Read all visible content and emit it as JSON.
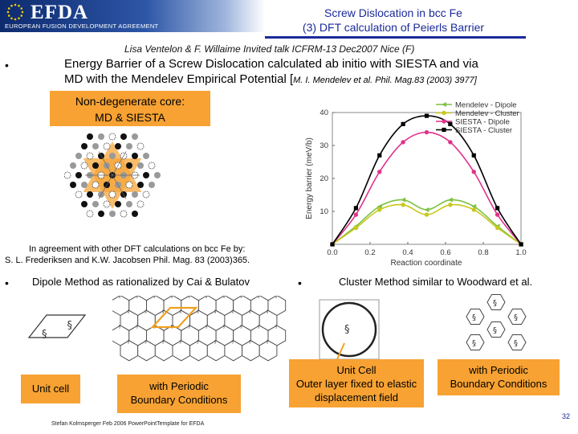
{
  "header": {
    "logo_text": "EFDA",
    "logo_subtitle": "EUROPEAN FUSION DEVELOPMENT AGREEMENT",
    "title_line1": "Screw Dislocation in bcc Fe",
    "title_line2": "(3) DFT calculation of Peierls Barrier",
    "colors": {
      "title": "#1a2a9a",
      "banner": "#0d2a6e"
    }
  },
  "authors": "Lisa Ventelon & F. Willaime Invited talk ICFRM-13  Dec2007 Nice (F)",
  "bullet_symbol": "•",
  "main_text": {
    "line1": "Energy Barrier of a Screw Dislocation calculated ab initio with SIESTA and  via",
    "line2_main": "MD with the Mendelev Empirical Potential [",
    "line2_ref": "M. I. Mendelev et al. Phil. Mag.83 (2003) 3977]"
  },
  "core_box": {
    "line1": "Non-degenerate core:",
    "line2": "MD & SIESTA",
    "color": "#f7a233"
  },
  "agreement": {
    "line1": "In agreement with other DFT calculations on bcc Fe by:",
    "line2": "S. L. Frederiksen and K.W. Jacobsen Phil. Mag. 83 (2003)365."
  },
  "chart_data": {
    "type": "line",
    "xlabel": "Reaction coordinate",
    "ylabel": "Energy barrier (meV/b)",
    "xlim": [
      0,
      1
    ],
    "ylim": [
      0,
      40
    ],
    "xticks": [
      "0.0",
      "0.2",
      "0.4",
      "0.6",
      "0.8",
      "1.0"
    ],
    "yticks": [
      "10",
      "20",
      "30",
      "40"
    ],
    "legend_position": "top-right",
    "series": [
      {
        "name": "Mendelev - Dipole",
        "color": "#7dc142",
        "marker": "triangle-left",
        "x": [
          0,
          0.125,
          0.25,
          0.375,
          0.5,
          0.625,
          0.75,
          0.875,
          1.0
        ],
        "y": [
          0,
          5.5,
          11.5,
          13.5,
          10.5,
          13.5,
          11.5,
          5.5,
          0
        ]
      },
      {
        "name": "Mendelev - Cluster",
        "color": "#c8c81e",
        "marker": "circle",
        "x": [
          0,
          0.125,
          0.25,
          0.375,
          0.5,
          0.625,
          0.75,
          0.875,
          1.0
        ],
        "y": [
          0,
          5,
          10.5,
          12,
          9,
          12,
          10.5,
          5,
          0
        ]
      },
      {
        "name": "SIESTA - Dipole",
        "color": "#e0338c",
        "marker": "circle",
        "x": [
          0,
          0.125,
          0.25,
          0.375,
          0.5,
          0.625,
          0.75,
          0.875,
          1.0
        ],
        "y": [
          0,
          9,
          22,
          31,
          34,
          31,
          22,
          9,
          0
        ]
      },
      {
        "name": "SIESTA - Cluster",
        "color": "#000000",
        "marker": "square",
        "x": [
          0,
          0.125,
          0.25,
          0.375,
          0.5,
          0.625,
          0.75,
          0.875,
          1.0
        ],
        "y": [
          0,
          11,
          27,
          36.5,
          39,
          36.5,
          27,
          11,
          0
        ]
      }
    ]
  },
  "dipole": {
    "title": "Dipole Method as rationalized by Cai & Bulatov",
    "unit_cell_label": "Unit cell",
    "pbc_line1": "with Periodic",
    "pbc_line2": "Boundary Conditions",
    "symbol": "§"
  },
  "cluster": {
    "title": "Cluster Method similar to Woodward et al.",
    "unit_cell_line1": "Unit Cell",
    "unit_cell_line2": "Outer layer fixed to elastic",
    "unit_cell_line3": "displacement field",
    "pbc_line1": "with Periodic",
    "pbc_line2": "Boundary Conditions",
    "symbol": "§"
  },
  "footer": "Stefan Kolmsperger Feb 2006 PowerPointTemplate for EFDA",
  "slide_number": "32"
}
